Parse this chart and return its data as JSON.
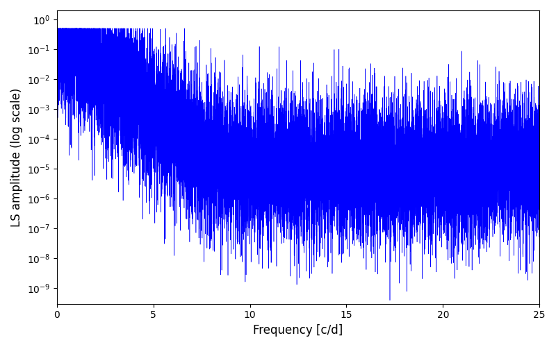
{
  "xlabel": "Frequency [c/d]",
  "ylabel": "LS amplitude (log scale)",
  "line_color": "#0000FF",
  "background_color": "#ffffff",
  "xlim": [
    0,
    25
  ],
  "ylim": [
    3e-10,
    2.0
  ],
  "xfreq_max": 25,
  "n_points": 15000,
  "seed": 7,
  "figsize": [
    8.0,
    5.0
  ],
  "dpi": 100
}
